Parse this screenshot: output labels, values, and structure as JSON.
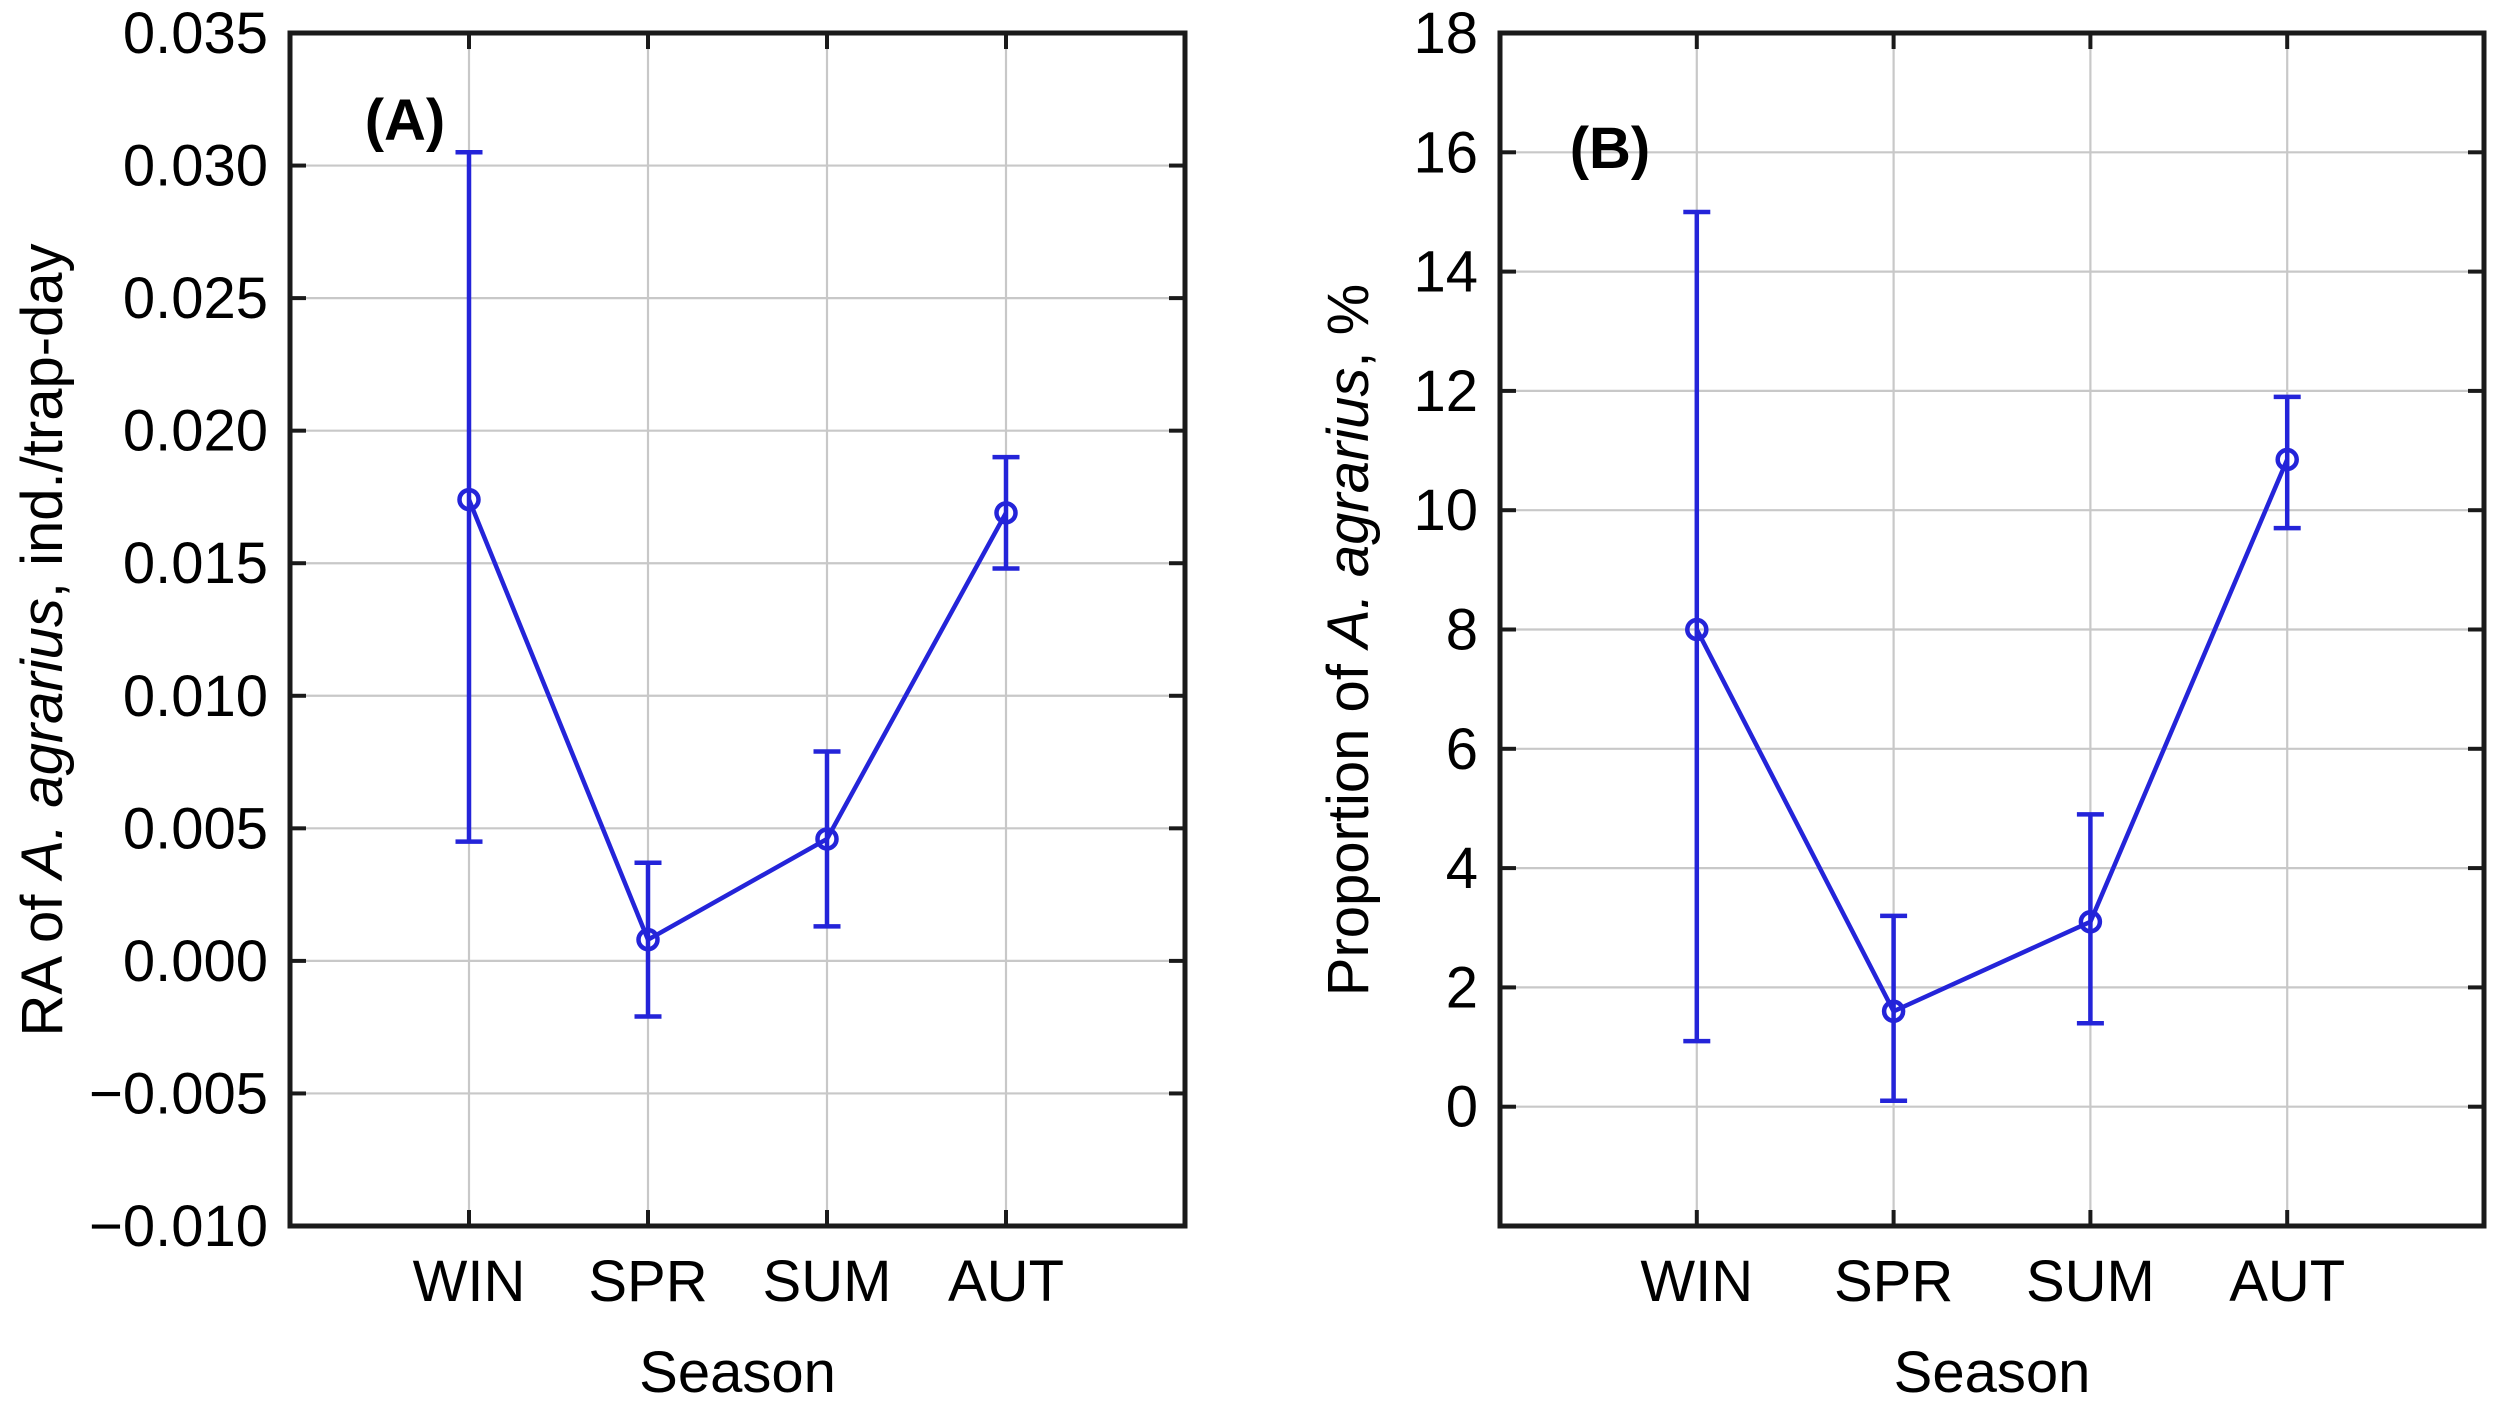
{
  "figure_type": "two-panel seasonal error-bar plot",
  "colors": {
    "data_series": "#2424d9",
    "frame": "#1a1a1a",
    "grid": "#c8c8c8",
    "text": "#000000",
    "background": "#ffffff"
  },
  "chart_data": [
    {
      "type": "line",
      "panel_label": "(A)",
      "x_axis_label": "Season",
      "y_axis_label": "RA of A. agrarius, ind./trap-day",
      "y_axis_label_parts": [
        {
          "text": "RA of ",
          "italic": false
        },
        {
          "text": "A. agrarius",
          "italic": true
        },
        {
          "text": ", ind./trap-day",
          "italic": false
        }
      ],
      "categories": [
        "WIN",
        "SPR",
        "SUM",
        "AUT"
      ],
      "values": [
        0.0174,
        0.0008,
        0.0046,
        0.0169
      ],
      "ci_low": [
        0.0045,
        -0.0021,
        0.0013,
        0.0148
      ],
      "ci_high": [
        0.0305,
        0.0037,
        0.0079,
        0.019
      ],
      "ylim": [
        -0.01,
        0.035
      ],
      "yticks": [
        0.035,
        0.03,
        0.025,
        0.02,
        0.015,
        0.01,
        0.005,
        0.0,
        -0.005,
        -0.01
      ],
      "ytick_labels": [
        "0.035",
        "0.030",
        "0.025",
        "0.020",
        "0.015",
        "0.010",
        "0.005",
        "0.000",
        "−0.005",
        "−0.010"
      ],
      "grid": true,
      "legend": null,
      "marker": "open-circle"
    },
    {
      "type": "line",
      "panel_label": "(B)",
      "x_axis_label": "Season",
      "y_axis_label": "Proportion of A. agrarius, %",
      "y_axis_label_parts": [
        {
          "text": "Proportion of ",
          "italic": false
        },
        {
          "text": "A. agrarius",
          "italic": true
        },
        {
          "text": ", %",
          "italic": false
        }
      ],
      "categories": [
        "WIN",
        "SPR",
        "SUM",
        "AUT"
      ],
      "values": [
        8.0,
        1.6,
        3.1,
        10.85
      ],
      "ci_low": [
        1.1,
        0.1,
        1.4,
        9.7
      ],
      "ci_high": [
        15.0,
        3.2,
        4.9,
        11.9
      ],
      "ylim": [
        -2,
        18
      ],
      "yticks": [
        18,
        16,
        14,
        12,
        10,
        8,
        6,
        4,
        2,
        0
      ],
      "ytick_labels": [
        "18",
        "16",
        "14",
        "12",
        "10",
        "8",
        "6",
        "4",
        "2",
        "0"
      ],
      "grid": true,
      "legend": null,
      "marker": "open-circle"
    }
  ]
}
